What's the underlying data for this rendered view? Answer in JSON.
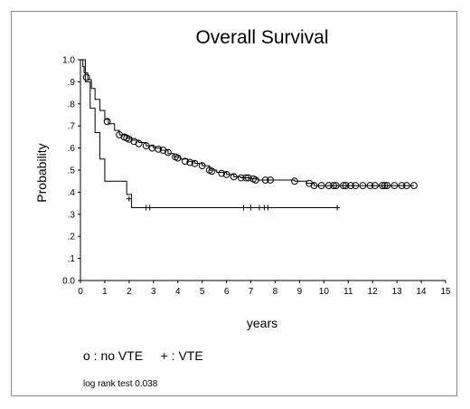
{
  "chart_data": {
    "type": "line",
    "title": "Overall Survival",
    "xlabel": "years",
    "ylabel": "Probability",
    "xlim": [
      0,
      15
    ],
    "ylim": [
      0,
      1
    ],
    "x_ticks": [
      "0",
      "1",
      "2",
      "3",
      "4",
      "5",
      "6",
      "7",
      "8",
      "9",
      "10",
      "11",
      "12",
      "13",
      "14",
      "15"
    ],
    "y_ticks": [
      "0.0",
      ".1",
      ".2",
      ".3",
      ".4",
      ".5",
      ".6",
      ".7",
      ".8",
      ".9",
      "1.0"
    ],
    "grid": false,
    "legend_text": "o : no VTE     + : VTE",
    "annotation": "log rank test 0.038",
    "series": [
      {
        "name": "no VTE",
        "marker": "circle",
        "color": "#000000",
        "steps": [
          [
            0,
            1.0
          ],
          [
            0.1,
            0.97
          ],
          [
            0.15,
            0.94
          ],
          [
            0.3,
            0.91
          ],
          [
            0.45,
            0.87
          ],
          [
            0.6,
            0.82
          ],
          [
            0.8,
            0.77
          ],
          [
            1.0,
            0.73
          ],
          [
            1.15,
            0.71
          ],
          [
            1.4,
            0.68
          ],
          [
            1.6,
            0.66
          ],
          [
            1.9,
            0.645
          ],
          [
            2.1,
            0.635
          ],
          [
            2.4,
            0.625
          ],
          [
            2.7,
            0.61
          ],
          [
            3.0,
            0.6
          ],
          [
            3.3,
            0.59
          ],
          [
            3.6,
            0.575
          ],
          [
            3.85,
            0.56
          ],
          [
            4.1,
            0.55
          ],
          [
            4.4,
            0.54
          ],
          [
            4.7,
            0.53
          ],
          [
            5.0,
            0.52
          ],
          [
            5.3,
            0.5
          ],
          [
            5.6,
            0.49
          ],
          [
            6.0,
            0.48
          ],
          [
            6.3,
            0.47
          ],
          [
            6.6,
            0.465
          ],
          [
            7.0,
            0.46
          ],
          [
            7.3,
            0.455
          ],
          [
            8.0,
            0.455
          ],
          [
            8.8,
            0.45
          ],
          [
            9.3,
            0.44
          ],
          [
            9.6,
            0.43
          ],
          [
            13.7,
            0.43
          ]
        ],
        "censored": [
          [
            0.25,
            0.92
          ],
          [
            1.1,
            0.72
          ],
          [
            1.6,
            0.66
          ],
          [
            1.8,
            0.65
          ],
          [
            1.9,
            0.645
          ],
          [
            2.0,
            0.64
          ],
          [
            2.2,
            0.63
          ],
          [
            2.4,
            0.62
          ],
          [
            2.7,
            0.61
          ],
          [
            2.95,
            0.6
          ],
          [
            3.2,
            0.595
          ],
          [
            3.4,
            0.59
          ],
          [
            3.6,
            0.58
          ],
          [
            3.9,
            0.56
          ],
          [
            4.0,
            0.555
          ],
          [
            4.3,
            0.54
          ],
          [
            4.5,
            0.535
          ],
          [
            4.7,
            0.53
          ],
          [
            5.0,
            0.52
          ],
          [
            5.3,
            0.5
          ],
          [
            5.4,
            0.495
          ],
          [
            5.8,
            0.485
          ],
          [
            6.0,
            0.48
          ],
          [
            6.3,
            0.47
          ],
          [
            6.6,
            0.465
          ],
          [
            6.8,
            0.465
          ],
          [
            6.9,
            0.465
          ],
          [
            7.1,
            0.46
          ],
          [
            7.2,
            0.455
          ],
          [
            7.6,
            0.455
          ],
          [
            7.8,
            0.455
          ],
          [
            8.8,
            0.45
          ],
          [
            9.4,
            0.44
          ],
          [
            9.6,
            0.43
          ],
          [
            9.9,
            0.43
          ],
          [
            10.2,
            0.43
          ],
          [
            10.4,
            0.43
          ],
          [
            10.5,
            0.43
          ],
          [
            10.8,
            0.43
          ],
          [
            10.9,
            0.43
          ],
          [
            11.1,
            0.43
          ],
          [
            11.3,
            0.43
          ],
          [
            11.6,
            0.43
          ],
          [
            11.9,
            0.43
          ],
          [
            12.1,
            0.43
          ],
          [
            12.4,
            0.43
          ],
          [
            12.5,
            0.43
          ],
          [
            12.6,
            0.43
          ],
          [
            12.9,
            0.43
          ],
          [
            13.2,
            0.43
          ],
          [
            13.4,
            0.43
          ],
          [
            13.7,
            0.43
          ]
        ]
      },
      {
        "name": "VTE",
        "marker": "plus",
        "color": "#000000",
        "steps": [
          [
            0,
            1.0
          ],
          [
            0.2,
            0.9
          ],
          [
            0.4,
            0.78
          ],
          [
            0.6,
            0.67
          ],
          [
            0.8,
            0.55
          ],
          [
            1.0,
            0.45
          ],
          [
            1.9,
            0.39
          ],
          [
            2.1,
            0.33
          ],
          [
            10.6,
            0.33
          ]
        ],
        "censored": [
          [
            2.0,
            0.37
          ],
          [
            2.7,
            0.33
          ],
          [
            2.85,
            0.33
          ],
          [
            6.7,
            0.33
          ],
          [
            7.0,
            0.33
          ],
          [
            7.35,
            0.33
          ],
          [
            7.55,
            0.33
          ],
          [
            7.7,
            0.33
          ],
          [
            10.55,
            0.33
          ]
        ]
      }
    ]
  }
}
